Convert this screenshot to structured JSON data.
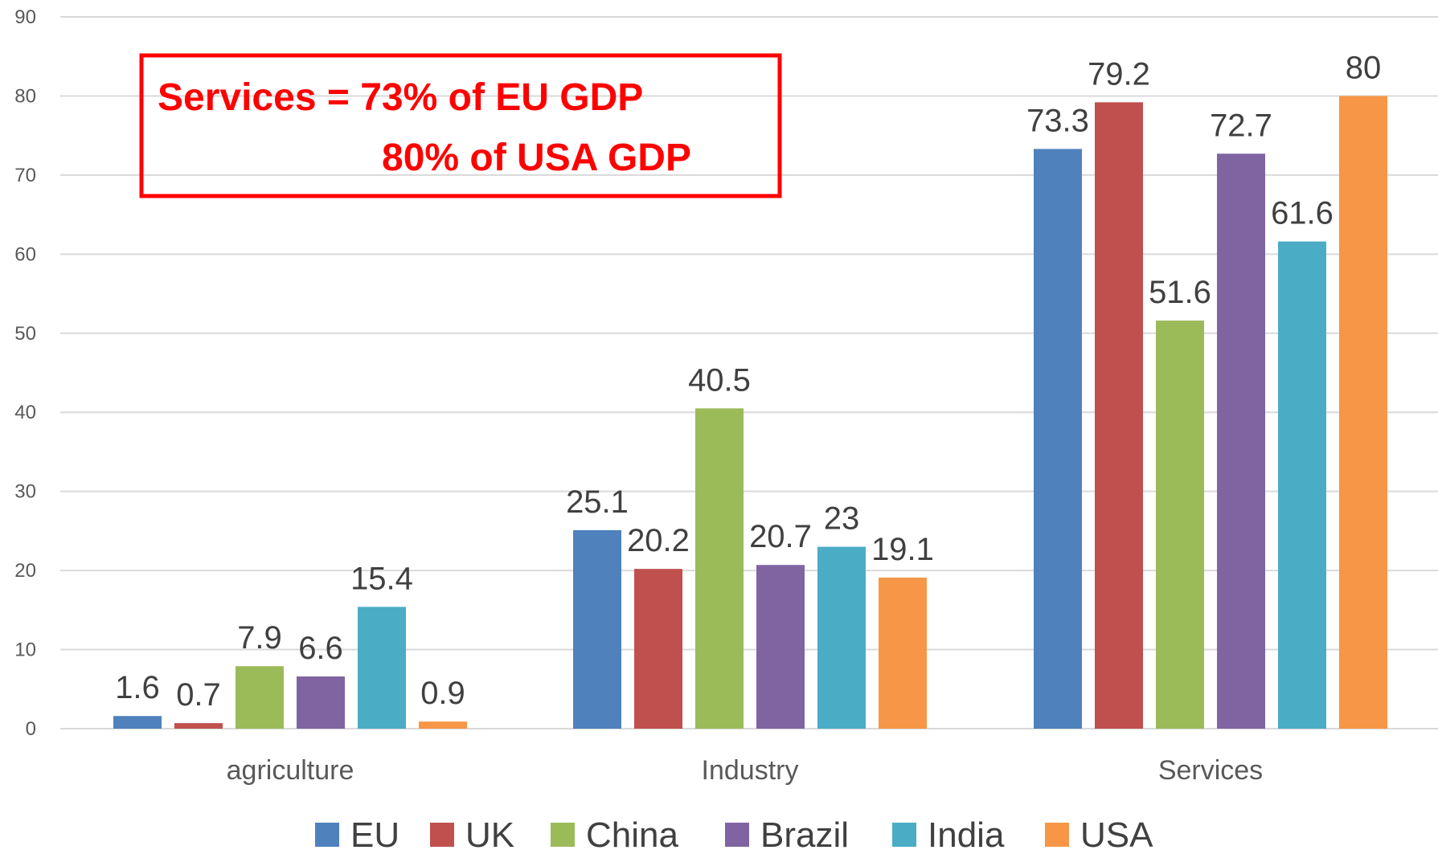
{
  "chart_data": {
    "type": "bar",
    "categories": [
      "agriculture",
      "Industry",
      "Services"
    ],
    "series": [
      {
        "name": "EU",
        "values": [
          1.6,
          25.1,
          73.3
        ],
        "color": "#4f81bd"
      },
      {
        "name": "UK",
        "values": [
          0.7,
          20.2,
          79.2
        ],
        "color": "#c0504d"
      },
      {
        "name": "China",
        "values": [
          7.9,
          40.5,
          51.6
        ],
        "color": "#9bbb59"
      },
      {
        "name": "Brazil",
        "values": [
          6.6,
          20.7,
          72.7
        ],
        "color": "#8064a2"
      },
      {
        "name": "India",
        "values": [
          15.4,
          23,
          61.6
        ],
        "color": "#4bacc6"
      },
      {
        "name": "USA",
        "values": [
          0.9,
          19.1,
          80
        ],
        "color": "#f79646"
      }
    ],
    "ylim": [
      0,
      90
    ],
    "yticks": [
      0,
      10,
      20,
      30,
      40,
      50,
      60,
      70,
      80,
      90
    ],
    "grid": true,
    "legend_position": "bottom",
    "annotation": {
      "line1": "Services = 73% of EU GDP",
      "line2": "80% of USA GDP",
      "color": "#ff0000"
    }
  }
}
